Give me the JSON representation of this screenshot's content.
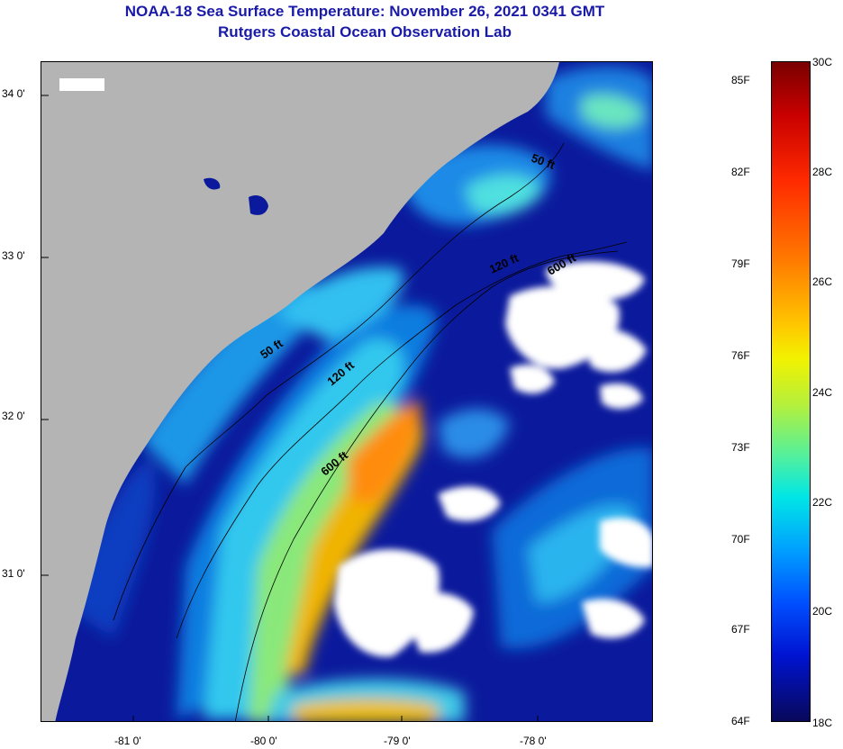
{
  "header": {
    "title": "NOAA-18 Sea Surface Temperature:  November 26, 2021 0341 GMT",
    "subtitle": "Rutgers Coastal Ocean Observation Lab"
  },
  "map": {
    "latitude_labels": [
      "34 0'",
      "33 0'",
      "32 0'",
      "31 0'"
    ],
    "longitude_labels": [
      "-81 0'",
      "-80 0'",
      "-79 0'",
      "-78 0'"
    ],
    "contour_labels": {
      "c50_a": "50 ft",
      "c50_b": "50 ft",
      "c120_a": "120 ft",
      "c120_b": "120 ft",
      "c600_a": "600 ft",
      "c600_b": "600 ft"
    },
    "colors": {
      "land": "#b4b4b4",
      "cloud": "#ffffff",
      "cold_water": "#0b1a9c",
      "contour": "#000000"
    }
  },
  "colorbar": {
    "fahrenheit_labels": [
      "85F",
      "82F",
      "79F",
      "76F",
      "73F",
      "70F",
      "67F",
      "64F"
    ],
    "celsius_labels": [
      "30C",
      "28C",
      "26C",
      "24C",
      "22C",
      "20C",
      "18C"
    ]
  }
}
